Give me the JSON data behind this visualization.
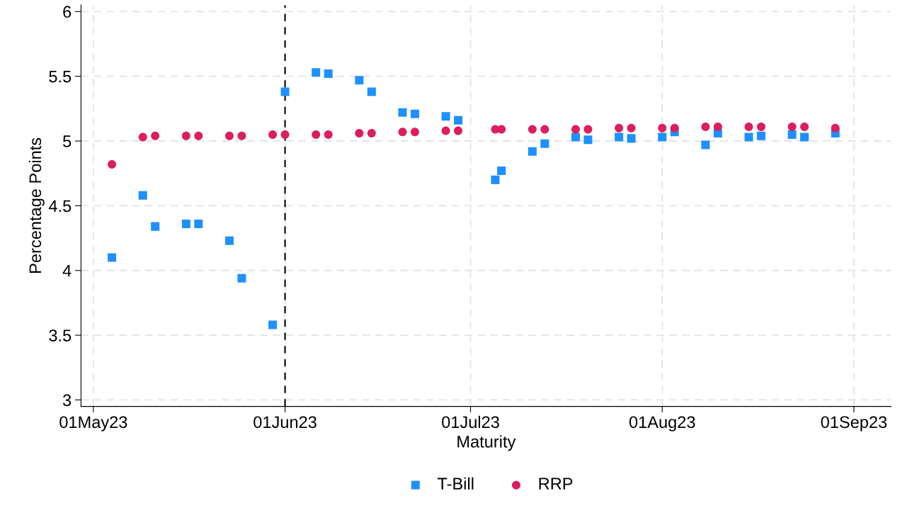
{
  "chart_data": {
    "type": "scatter",
    "xlabel": "Maturity",
    "ylabel": "Percentage Points",
    "x": [
      "2023-05-04",
      "2023-05-09",
      "2023-05-11",
      "2023-05-16",
      "2023-05-18",
      "2023-05-23",
      "2023-05-25",
      "2023-05-30",
      "2023-06-01",
      "2023-06-06",
      "2023-06-08",
      "2023-06-13",
      "2023-06-15",
      "2023-06-20",
      "2023-06-22",
      "2023-06-27",
      "2023-06-29",
      "2023-07-05",
      "2023-07-06",
      "2023-07-11",
      "2023-07-13",
      "2023-07-18",
      "2023-07-20",
      "2023-07-25",
      "2023-07-27",
      "2023-08-01",
      "2023-08-03",
      "2023-08-08",
      "2023-08-10",
      "2023-08-15",
      "2023-08-17",
      "2023-08-22",
      "2023-08-24",
      "2023-08-29"
    ],
    "series": [
      {
        "name": "T-Bill",
        "color": "#1e90ff",
        "marker": "square",
        "values": [
          4.1,
          4.58,
          4.34,
          4.36,
          4.36,
          4.23,
          3.94,
          3.58,
          5.38,
          5.53,
          5.52,
          5.47,
          5.38,
          5.22,
          5.21,
          5.19,
          5.16,
          4.7,
          4.77,
          4.92,
          4.98,
          5.03,
          5.01,
          5.03,
          5.02,
          5.03,
          5.07,
          4.97,
          5.06,
          5.03,
          5.04,
          5.05,
          5.03,
          5.06
        ]
      },
      {
        "name": "RRP",
        "color": "#dc1e5a",
        "marker": "circle",
        "values": [
          4.82,
          5.03,
          5.04,
          5.04,
          5.04,
          5.04,
          5.04,
          5.05,
          5.05,
          5.05,
          5.05,
          5.06,
          5.06,
          5.07,
          5.07,
          5.08,
          5.08,
          5.09,
          5.09,
          5.09,
          5.09,
          5.09,
          5.09,
          5.1,
          5.1,
          5.1,
          5.1,
          5.11,
          5.11,
          5.11,
          5.11,
          5.11,
          5.11,
          5.1
        ]
      }
    ],
    "xlim": [
      "2023-04-29",
      "2023-09-07"
    ],
    "xticks": [
      {
        "value": "2023-05-01",
        "label": "01May23"
      },
      {
        "value": "2023-06-01",
        "label": "01Jun23"
      },
      {
        "value": "2023-07-01",
        "label": "01Jul23"
      },
      {
        "value": "2023-08-01",
        "label": "01Aug23"
      },
      {
        "value": "2023-09-01",
        "label": "01Sep23"
      }
    ],
    "ylim": [
      2.95,
      6.05
    ],
    "yticks": [
      3,
      3.5,
      4,
      4.5,
      5,
      5.5,
      6
    ],
    "ref_lines": [
      {
        "axis": "x",
        "value": "2023-06-01",
        "label": null,
        "color": "#000000",
        "line_style": "dashed"
      }
    ],
    "grid": true,
    "legend": "bottom"
  }
}
